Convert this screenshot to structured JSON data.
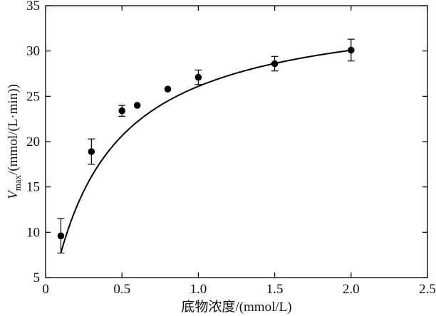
{
  "chart_data": {
    "type": "scatter",
    "title": "",
    "xlabel": "底物浓度/(mmol/L)",
    "ylabel": {
      "symbol": "V",
      "subscript": "max",
      "unit": "/(mmol/(L·min))"
    },
    "xlim": [
      0,
      2.5
    ],
    "ylim": [
      5,
      35
    ],
    "xticks": [
      0,
      0.5,
      1.0,
      1.5,
      2.0,
      2.5
    ],
    "xtick_labels": [
      "0",
      "0.5",
      "1.0",
      "1.5",
      "2.0",
      "2.5"
    ],
    "yticks": [
      5,
      10,
      15,
      20,
      25,
      30,
      35
    ],
    "ytick_labels": [
      "5",
      "10",
      "15",
      "20",
      "25",
      "30",
      "35"
    ],
    "grid": false,
    "legend": "none",
    "series": [
      {
        "x": [
          0.1,
          0.3,
          0.5,
          0.6,
          0.8,
          1.0,
          1.5,
          2.0
        ],
        "y": [
          9.6,
          18.9,
          23.4,
          24.0,
          25.8,
          27.1,
          28.6,
          30.1
        ],
        "error": [
          1.9,
          1.4,
          0.6,
          0,
          0,
          0.8,
          0.8,
          1.2
        ],
        "marker": "filled-circle",
        "color": "#000000"
      }
    ],
    "fit_curve": {
      "model": "michaelis-menten",
      "Vmax": 35.5,
      "Km": 0.36,
      "x_range": [
        0.1,
        2.0
      ],
      "color": "#000000"
    }
  }
}
